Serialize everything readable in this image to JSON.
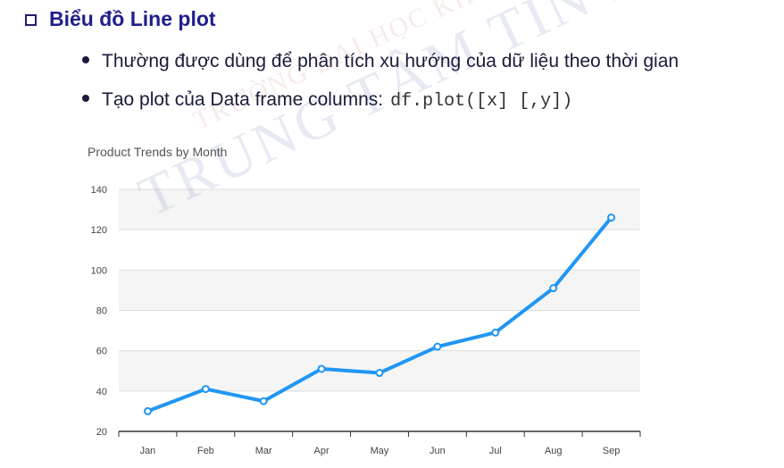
{
  "heading": {
    "title": "Biểu đồ Line plot"
  },
  "bullets": [
    {
      "text": "Thường được dùng để phân tích xu hướng của dữ liệu theo thời gian"
    },
    {
      "text": "Tạo plot của Data frame columns:",
      "code": "df.plot([x] [,y])"
    }
  ],
  "watermark": {
    "line1": "TRƯỜNG ĐẠI HỌC KHOA HỌC TỰ NHIÊN",
    "line2": "TRUNG TÂM TIN HỌC"
  },
  "chart_data": {
    "type": "line",
    "title": "Product Trends by Month",
    "categories": [
      "Jan",
      "Feb",
      "Mar",
      "Apr",
      "May",
      "Jun",
      "Jul",
      "Aug",
      "Sep"
    ],
    "series": [
      {
        "values": [
          30,
          41,
          35,
          51,
          49,
          62,
          69,
          91,
          126
        ]
      }
    ],
    "yticks": [
      "20",
      "40",
      "60",
      "80",
      "100",
      "120",
      "140"
    ],
    "ylim": [
      20,
      140
    ],
    "grid": "horizontal bands",
    "line_color": "#2196f3",
    "band_color": "#f5f5f5"
  }
}
